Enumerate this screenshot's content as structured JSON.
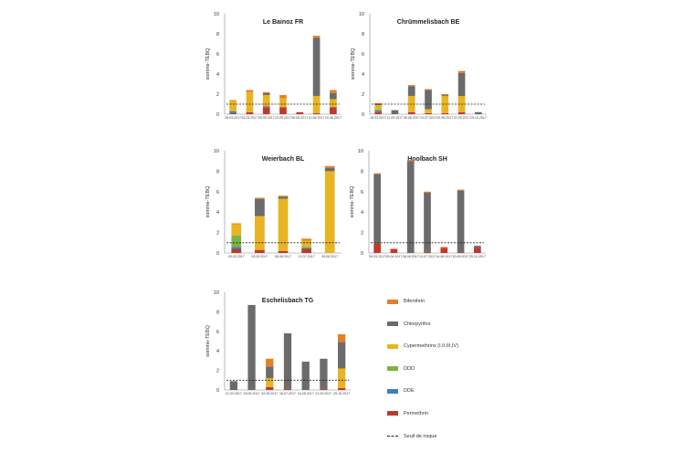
{
  "series_meta": [
    {
      "name": "Bifenthrin",
      "color": "#e67e22"
    },
    {
      "name": "Chlorpyrifos",
      "color": "#6b6b6b"
    },
    {
      "name": "Cypermethrins (I,II,III,IV)",
      "color": "#e8b422"
    },
    {
      "name": "DDD",
      "color": "#7cb342"
    },
    {
      "name": "DDE",
      "color": "#3f7fb9"
    },
    {
      "name": "Permethrin",
      "color": "#c0392b"
    }
  ],
  "threshold_label": "Seuil de risque",
  "chart_data": [
    {
      "type": "bar",
      "stacked": true,
      "title": "Le Bainoz FR",
      "ylabel": "somme-TEBQ",
      "ylim": [
        0,
        10
      ],
      "yticks": [
        "0",
        "2",
        "4",
        "6",
        "8",
        "10"
      ],
      "threshold": 1,
      "categories": [
        "28.03.2017",
        "25.04.2017",
        "09.05.2017",
        "23.05.2017",
        "06.06.2017",
        "11.08.2017",
        "24.06.2017"
      ],
      "series": [
        {
          "name": "Permethrin",
          "values": [
            0.1,
            0.2,
            0.7,
            0.7,
            0.2,
            0.1,
            0.7
          ]
        },
        {
          "name": "DDE",
          "values": [
            0.2,
            0.0,
            0.1,
            0.0,
            0.0,
            0.0,
            0.0
          ]
        },
        {
          "name": "DDD",
          "values": [
            0.0,
            0.0,
            0.0,
            0.0,
            0.0,
            0.0,
            0.0
          ]
        },
        {
          "name": "Cypermethrins (I,II,III,IV)",
          "values": [
            1.0,
            2.0,
            1.1,
            0.9,
            0.0,
            1.7,
            0.8
          ]
        },
        {
          "name": "Chlorpyrifos",
          "values": [
            0.0,
            0.0,
            0.2,
            0.0,
            0.0,
            5.8,
            0.6
          ]
        },
        {
          "name": "Bifenthrin",
          "values": [
            0.1,
            0.2,
            0.1,
            0.3,
            0.0,
            0.2,
            0.3
          ]
        }
      ]
    },
    {
      "type": "bar",
      "stacked": true,
      "title": "Chrümmelisbach BE",
      "ylabel": "somme-TEBQ",
      "ylim": [
        0,
        10
      ],
      "yticks": [
        "0",
        "2",
        "4",
        "6",
        "8",
        "10"
      ],
      "threshold": 1,
      "categories": [
        "28.03.2017",
        "11.05.2017",
        "06.06.2017",
        "14.07.2017",
        "02.08.2017",
        "22.09.2017",
        "25.10.2017"
      ],
      "series": [
        {
          "name": "Permethrin",
          "values": [
            0.2,
            0.0,
            0.2,
            0.1,
            0.1,
            0.2,
            0.0
          ]
        },
        {
          "name": "DDE",
          "values": [
            0.2,
            0.0,
            0.0,
            0.0,
            0.0,
            0.0,
            0.0
          ]
        },
        {
          "name": "DDD",
          "values": [
            0.0,
            0.0,
            0.0,
            0.0,
            0.0,
            0.0,
            0.0
          ]
        },
        {
          "name": "Cypermethrins (I,II,III,IV)",
          "values": [
            0.5,
            0.0,
            1.6,
            0.4,
            1.7,
            1.6,
            0.0
          ]
        },
        {
          "name": "Chlorpyrifos",
          "values": [
            0.1,
            0.4,
            1.0,
            1.9,
            0.1,
            2.3,
            0.2
          ]
        },
        {
          "name": "Bifenthrin",
          "values": [
            0.1,
            0.0,
            0.1,
            0.1,
            0.1,
            0.2,
            0.0
          ]
        }
      ]
    },
    {
      "type": "bar",
      "stacked": true,
      "title": "Weierbach BL",
      "ylabel": "somme-TEBQ",
      "ylim": [
        0,
        10
      ],
      "yticks": [
        "0",
        "2",
        "4",
        "6",
        "8",
        "10"
      ],
      "threshold": 1,
      "categories": [
        "09.03.2017",
        "03.05.2017",
        "08.06.2017",
        "12.07.2017",
        "09.08.2017"
      ],
      "series": [
        {
          "name": "Permethrin",
          "values": [
            0.4,
            0.3,
            0.2,
            0.4,
            0.0
          ]
        },
        {
          "name": "DDE",
          "values": [
            0.2,
            0.0,
            0.0,
            0.1,
            0.0
          ]
        },
        {
          "name": "DDD",
          "values": [
            1.1,
            0.0,
            0.0,
            0.1,
            0.0
          ]
        },
        {
          "name": "Cypermethrins (I,II,III,IV)",
          "values": [
            1.1,
            3.3,
            5.1,
            0.6,
            8.0
          ]
        },
        {
          "name": "Chlorpyrifos",
          "values": [
            0.0,
            1.7,
            0.2,
            0.0,
            0.3
          ]
        },
        {
          "name": "Bifenthrin",
          "values": [
            0.1,
            0.1,
            0.1,
            0.2,
            0.2
          ]
        }
      ]
    },
    {
      "type": "bar",
      "stacked": true,
      "title": "Hoolbach SH",
      "ylabel": "somme-TEBQ",
      "ylim": [
        0,
        10
      ],
      "yticks": [
        "0",
        "2",
        "4",
        "6",
        "8",
        "10"
      ],
      "threshold": 1,
      "categories": [
        "06.03.2017",
        "05.04.2017",
        "08.06.2017",
        "13.07.2017",
        "14.08.2017",
        "20.09.2017",
        "25.10.2017"
      ],
      "series": [
        {
          "name": "Permethrin",
          "values": [
            0.9,
            0.4,
            0.0,
            0.1,
            0.5,
            0.1,
            0.5
          ]
        },
        {
          "name": "DDE",
          "values": [
            0.0,
            0.0,
            0.0,
            0.0,
            0.0,
            0.0,
            0.0
          ]
        },
        {
          "name": "DDD",
          "values": [
            0.0,
            0.0,
            0.0,
            0.0,
            0.0,
            0.0,
            0.0
          ]
        },
        {
          "name": "Cypermethrins (I,II,III,IV)",
          "values": [
            0.0,
            0.0,
            0.0,
            0.0,
            0.0,
            0.0,
            0.0
          ]
        },
        {
          "name": "Chlorpyrifos",
          "values": [
            6.8,
            0.0,
            9.0,
            5.8,
            0.0,
            6.0,
            0.2
          ]
        },
        {
          "name": "Bifenthrin",
          "values": [
            0.1,
            0.0,
            0.1,
            0.1,
            0.1,
            0.1,
            0.0
          ]
        }
      ]
    },
    {
      "type": "bar",
      "stacked": true,
      "title": "Eschelisbach TG",
      "ylabel": "somme-TEBQ",
      "ylim": [
        0,
        10
      ],
      "yticks": [
        "0",
        "2",
        "4",
        "6",
        "8",
        "10"
      ],
      "threshold": 1,
      "categories": [
        "21.03.2017",
        "19.05.2017",
        "09.06.2017",
        "18.07.2017",
        "16.08.2017",
        "21.09.2017",
        "25.10.2017"
      ],
      "series": [
        {
          "name": "Permethrin",
          "values": [
            0.0,
            0.0,
            0.3,
            0.1,
            0.0,
            0.1,
            0.2
          ]
        },
        {
          "name": "DDE",
          "values": [
            0.0,
            0.0,
            0.0,
            0.0,
            0.0,
            0.0,
            0.0
          ]
        },
        {
          "name": "DDD",
          "values": [
            0.0,
            0.0,
            0.0,
            0.0,
            0.0,
            0.0,
            0.0
          ]
        },
        {
          "name": "Cypermethrins (I,II,III,IV)",
          "values": [
            0.0,
            0.0,
            0.9,
            0.0,
            0.0,
            0.0,
            2.0
          ]
        },
        {
          "name": "Chlorpyrifos",
          "values": [
            0.9,
            8.7,
            1.2,
            5.7,
            2.9,
            3.1,
            2.7
          ]
        },
        {
          "name": "Bifenthrin",
          "values": [
            0.0,
            0.0,
            0.8,
            0.0,
            0.0,
            0.0,
            0.8
          ]
        }
      ]
    }
  ]
}
